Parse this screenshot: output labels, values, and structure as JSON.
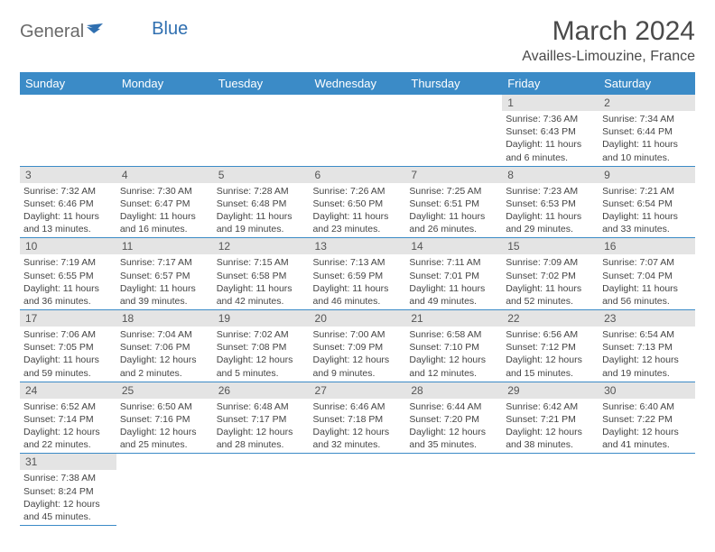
{
  "logo": {
    "part1": "General",
    "part2": "Blue"
  },
  "title": "March 2024",
  "location": "Availles-Limouzine, France",
  "dayHeaders": [
    "Sunday",
    "Monday",
    "Tuesday",
    "Wednesday",
    "Thursday",
    "Friday",
    "Saturday"
  ],
  "colors": {
    "headerBg": "#3b8bc7",
    "headerText": "#ffffff",
    "dayNumBg": "#e4e4e4",
    "rowBorder": "#3b8bc7",
    "logoGray": "#6a6a6a",
    "logoBlue": "#2f6fb0"
  },
  "weeks": [
    [
      null,
      null,
      null,
      null,
      null,
      {
        "n": "1",
        "sunrise": "7:36 AM",
        "sunset": "6:43 PM",
        "daylight": "11 hours and 6 minutes."
      },
      {
        "n": "2",
        "sunrise": "7:34 AM",
        "sunset": "6:44 PM",
        "daylight": "11 hours and 10 minutes."
      }
    ],
    [
      {
        "n": "3",
        "sunrise": "7:32 AM",
        "sunset": "6:46 PM",
        "daylight": "11 hours and 13 minutes."
      },
      {
        "n": "4",
        "sunrise": "7:30 AM",
        "sunset": "6:47 PM",
        "daylight": "11 hours and 16 minutes."
      },
      {
        "n": "5",
        "sunrise": "7:28 AM",
        "sunset": "6:48 PM",
        "daylight": "11 hours and 19 minutes."
      },
      {
        "n": "6",
        "sunrise": "7:26 AM",
        "sunset": "6:50 PM",
        "daylight": "11 hours and 23 minutes."
      },
      {
        "n": "7",
        "sunrise": "7:25 AM",
        "sunset": "6:51 PM",
        "daylight": "11 hours and 26 minutes."
      },
      {
        "n": "8",
        "sunrise": "7:23 AM",
        "sunset": "6:53 PM",
        "daylight": "11 hours and 29 minutes."
      },
      {
        "n": "9",
        "sunrise": "7:21 AM",
        "sunset": "6:54 PM",
        "daylight": "11 hours and 33 minutes."
      }
    ],
    [
      {
        "n": "10",
        "sunrise": "7:19 AM",
        "sunset": "6:55 PM",
        "daylight": "11 hours and 36 minutes."
      },
      {
        "n": "11",
        "sunrise": "7:17 AM",
        "sunset": "6:57 PM",
        "daylight": "11 hours and 39 minutes."
      },
      {
        "n": "12",
        "sunrise": "7:15 AM",
        "sunset": "6:58 PM",
        "daylight": "11 hours and 42 minutes."
      },
      {
        "n": "13",
        "sunrise": "7:13 AM",
        "sunset": "6:59 PM",
        "daylight": "11 hours and 46 minutes."
      },
      {
        "n": "14",
        "sunrise": "7:11 AM",
        "sunset": "7:01 PM",
        "daylight": "11 hours and 49 minutes."
      },
      {
        "n": "15",
        "sunrise": "7:09 AM",
        "sunset": "7:02 PM",
        "daylight": "11 hours and 52 minutes."
      },
      {
        "n": "16",
        "sunrise": "7:07 AM",
        "sunset": "7:04 PM",
        "daylight": "11 hours and 56 minutes."
      }
    ],
    [
      {
        "n": "17",
        "sunrise": "7:06 AM",
        "sunset": "7:05 PM",
        "daylight": "11 hours and 59 minutes."
      },
      {
        "n": "18",
        "sunrise": "7:04 AM",
        "sunset": "7:06 PM",
        "daylight": "12 hours and 2 minutes."
      },
      {
        "n": "19",
        "sunrise": "7:02 AM",
        "sunset": "7:08 PM",
        "daylight": "12 hours and 5 minutes."
      },
      {
        "n": "20",
        "sunrise": "7:00 AM",
        "sunset": "7:09 PM",
        "daylight": "12 hours and 9 minutes."
      },
      {
        "n": "21",
        "sunrise": "6:58 AM",
        "sunset": "7:10 PM",
        "daylight": "12 hours and 12 minutes."
      },
      {
        "n": "22",
        "sunrise": "6:56 AM",
        "sunset": "7:12 PM",
        "daylight": "12 hours and 15 minutes."
      },
      {
        "n": "23",
        "sunrise": "6:54 AM",
        "sunset": "7:13 PM",
        "daylight": "12 hours and 19 minutes."
      }
    ],
    [
      {
        "n": "24",
        "sunrise": "6:52 AM",
        "sunset": "7:14 PM",
        "daylight": "12 hours and 22 minutes."
      },
      {
        "n": "25",
        "sunrise": "6:50 AM",
        "sunset": "7:16 PM",
        "daylight": "12 hours and 25 minutes."
      },
      {
        "n": "26",
        "sunrise": "6:48 AM",
        "sunset": "7:17 PM",
        "daylight": "12 hours and 28 minutes."
      },
      {
        "n": "27",
        "sunrise": "6:46 AM",
        "sunset": "7:18 PM",
        "daylight": "12 hours and 32 minutes."
      },
      {
        "n": "28",
        "sunrise": "6:44 AM",
        "sunset": "7:20 PM",
        "daylight": "12 hours and 35 minutes."
      },
      {
        "n": "29",
        "sunrise": "6:42 AM",
        "sunset": "7:21 PM",
        "daylight": "12 hours and 38 minutes."
      },
      {
        "n": "30",
        "sunrise": "6:40 AM",
        "sunset": "7:22 PM",
        "daylight": "12 hours and 41 minutes."
      }
    ],
    [
      {
        "n": "31",
        "sunrise": "7:38 AM",
        "sunset": "8:24 PM",
        "daylight": "12 hours and 45 minutes."
      },
      null,
      null,
      null,
      null,
      null,
      null
    ]
  ],
  "labels": {
    "sunrise": "Sunrise: ",
    "sunset": "Sunset: ",
    "daylight": "Daylight: "
  }
}
